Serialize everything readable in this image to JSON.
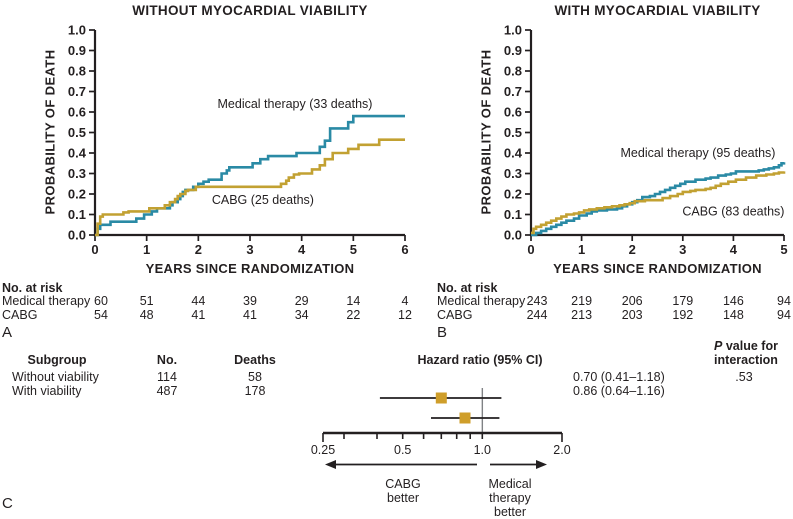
{
  "colors": {
    "medical_therapy": "#2a8aa5",
    "cabg": "#c2a132",
    "axis": "#231f20",
    "reference_line": "#808285",
    "marker": "#cf9e2a"
  },
  "chart_data": [
    {
      "type": "line",
      "subtype": "kaplan-meier-step",
      "panel_letter": "A",
      "title": "WITHOUT MYOCARDIAL VIABILITY",
      "xlabel": "YEARS SINCE RANDOMIZATION",
      "ylabel": "PROBABILITY OF DEATH",
      "xlim": [
        0,
        6
      ],
      "ylim": [
        0,
        1
      ],
      "xticks": [
        "0",
        "1",
        "2",
        "3",
        "4",
        "5",
        "6"
      ],
      "yticks": [
        "0.0",
        "0.1",
        "0.2",
        "0.3",
        "0.4",
        "0.5",
        "0.6",
        "0.7",
        "0.8",
        "0.9",
        "1.0"
      ],
      "grid": false,
      "series": [
        {
          "name": "Medical therapy (33 deaths)",
          "color": "#2a8aa5",
          "label_pos": [
            3.87,
            0.64
          ],
          "steps": [
            [
              0,
              0
            ],
            [
              0.05,
              0.03
            ],
            [
              0.1,
              0.05
            ],
            [
              0.3,
              0.065
            ],
            [
              0.8,
              0.08
            ],
            [
              0.95,
              0.1
            ],
            [
              1.1,
              0.115
            ],
            [
              1.2,
              0.13
            ],
            [
              1.45,
              0.145
            ],
            [
              1.5,
              0.16
            ],
            [
              1.6,
              0.175
            ],
            [
              1.65,
              0.19
            ],
            [
              1.7,
              0.21
            ],
            [
              1.75,
              0.22
            ],
            [
              1.9,
              0.235
            ],
            [
              2,
              0.25
            ],
            [
              2.1,
              0.26
            ],
            [
              2.2,
              0.27
            ],
            [
              2.45,
              0.3
            ],
            [
              2.55,
              0.315
            ],
            [
              2.6,
              0.33
            ],
            [
              3.05,
              0.35
            ],
            [
              3.2,
              0.37
            ],
            [
              3.35,
              0.385
            ],
            [
              3.9,
              0.4
            ],
            [
              4.35,
              0.43
            ],
            [
              4.45,
              0.46
            ],
            [
              4.55,
              0.52
            ],
            [
              4.9,
              0.55
            ],
            [
              5,
              0.58
            ],
            [
              6,
              0.58
            ]
          ]
        },
        {
          "name": "CABG (25 deaths)",
          "color": "#c2a132",
          "label_pos": [
            3.25,
            0.17
          ],
          "steps": [
            [
              0,
              0
            ],
            [
              0.05,
              0.055
            ],
            [
              0.1,
              0.09
            ],
            [
              0.15,
              0.1
            ],
            [
              0.55,
              0.11
            ],
            [
              0.65,
              0.115
            ],
            [
              1.05,
              0.13
            ],
            [
              1.35,
              0.145
            ],
            [
              1.45,
              0.16
            ],
            [
              1.55,
              0.175
            ],
            [
              1.6,
              0.19
            ],
            [
              1.65,
              0.2
            ],
            [
              1.75,
              0.215
            ],
            [
              1.8,
              0.22
            ],
            [
              1.95,
              0.235
            ],
            [
              3.6,
              0.25
            ],
            [
              3.7,
              0.265
            ],
            [
              3.75,
              0.28
            ],
            [
              3.85,
              0.295
            ],
            [
              3.95,
              0.3
            ],
            [
              4.2,
              0.32
            ],
            [
              4.35,
              0.34
            ],
            [
              4.45,
              0.37
            ],
            [
              4.6,
              0.4
            ],
            [
              4.9,
              0.42
            ],
            [
              5.1,
              0.44
            ],
            [
              5.5,
              0.465
            ],
            [
              6,
              0.465
            ]
          ]
        }
      ],
      "risk_table": {
        "title": "No. at risk",
        "rows": [
          {
            "label": "Medical therapy",
            "counts": [
              "60",
              "51",
              "44",
              "39",
              "29",
              "14",
              "4"
            ]
          },
          {
            "label": "CABG",
            "counts": [
              "54",
              "48",
              "41",
              "41",
              "34",
              "22",
              "12"
            ]
          }
        ]
      }
    },
    {
      "type": "line",
      "subtype": "kaplan-meier-step",
      "panel_letter": "B",
      "title": "WITH MYOCARDIAL VIABILITY",
      "xlabel": "YEARS SINCE RANDOMIZATION",
      "ylabel": "PROBABILITY OF DEATH",
      "xlim": [
        0,
        5
      ],
      "ylim": [
        0,
        1
      ],
      "xticks": [
        "0",
        "1",
        "2",
        "3",
        "4",
        "5"
      ],
      "yticks": [
        "0.0",
        "0.1",
        "0.2",
        "0.3",
        "0.4",
        "0.5",
        "0.6",
        "0.7",
        "0.8",
        "0.9",
        "1.0"
      ],
      "grid": false,
      "series": [
        {
          "name": "Medical therapy (95 deaths)",
          "color": "#2a8aa5",
          "label_pos": [
            3.3,
            0.4
          ],
          "steps": [
            [
              0,
              0
            ],
            [
              0.1,
              0.01
            ],
            [
              0.2,
              0.02
            ],
            [
              0.3,
              0.03
            ],
            [
              0.4,
              0.04
            ],
            [
              0.5,
              0.05
            ],
            [
              0.6,
              0.06
            ],
            [
              0.7,
              0.07
            ],
            [
              0.85,
              0.08
            ],
            [
              0.95,
              0.095
            ],
            [
              1.1,
              0.105
            ],
            [
              1.2,
              0.115
            ],
            [
              1.3,
              0.12
            ],
            [
              1.5,
              0.125
            ],
            [
              1.7,
              0.13
            ],
            [
              1.8,
              0.14
            ],
            [
              1.9,
              0.15
            ],
            [
              2,
              0.16
            ],
            [
              2.1,
              0.17
            ],
            [
              2.2,
              0.185
            ],
            [
              2.35,
              0.19
            ],
            [
              2.45,
              0.2
            ],
            [
              2.55,
              0.21
            ],
            [
              2.65,
              0.22
            ],
            [
              2.75,
              0.23
            ],
            [
              2.85,
              0.24
            ],
            [
              2.95,
              0.25
            ],
            [
              3.05,
              0.26
            ],
            [
              3.25,
              0.27
            ],
            [
              3.45,
              0.275
            ],
            [
              3.55,
              0.28
            ],
            [
              3.7,
              0.29
            ],
            [
              3.85,
              0.295
            ],
            [
              3.95,
              0.3
            ],
            [
              4.05,
              0.31
            ],
            [
              4.5,
              0.315
            ],
            [
              4.6,
              0.32
            ],
            [
              4.7,
              0.325
            ],
            [
              4.8,
              0.33
            ],
            [
              4.9,
              0.34
            ],
            [
              4.95,
              0.35
            ],
            [
              5,
              0.355
            ]
          ]
        },
        {
          "name": "CABG (83 deaths)",
          "color": "#c2a132",
          "label_pos": [
            4.0,
            0.115
          ],
          "steps": [
            [
              0,
              0.01
            ],
            [
              0.05,
              0.03
            ],
            [
              0.1,
              0.04
            ],
            [
              0.2,
              0.05
            ],
            [
              0.3,
              0.06
            ],
            [
              0.4,
              0.07
            ],
            [
              0.5,
              0.08
            ],
            [
              0.6,
              0.09
            ],
            [
              0.7,
              0.1
            ],
            [
              0.85,
              0.105
            ],
            [
              0.95,
              0.11
            ],
            [
              1.05,
              0.12
            ],
            [
              1.15,
              0.125
            ],
            [
              1.3,
              0.13
            ],
            [
              1.45,
              0.135
            ],
            [
              1.6,
              0.14
            ],
            [
              1.75,
              0.145
            ],
            [
              1.85,
              0.15
            ],
            [
              1.95,
              0.155
            ],
            [
              2.05,
              0.165
            ],
            [
              2.25,
              0.17
            ],
            [
              2.6,
              0.18
            ],
            [
              2.75,
              0.19
            ],
            [
              2.9,
              0.2
            ],
            [
              3,
              0.21
            ],
            [
              3.15,
              0.215
            ],
            [
              3.25,
              0.22
            ],
            [
              3.45,
              0.225
            ],
            [
              3.55,
              0.23
            ],
            [
              3.65,
              0.24
            ],
            [
              3.75,
              0.25
            ],
            [
              3.9,
              0.26
            ],
            [
              4.05,
              0.27
            ],
            [
              4.25,
              0.28
            ],
            [
              4.45,
              0.29
            ],
            [
              4.65,
              0.295
            ],
            [
              4.8,
              0.3
            ],
            [
              4.9,
              0.305
            ],
            [
              5,
              0.31
            ]
          ]
        }
      ],
      "risk_table": {
        "title": "No. at risk",
        "rows": [
          {
            "label": "Medical therapy",
            "counts": [
              "243",
              "219",
              "206",
              "179",
              "146",
              "94"
            ]
          },
          {
            "label": "CABG",
            "counts": [
              "244",
              "213",
              "203",
              "192",
              "148",
              "94"
            ]
          }
        ]
      }
    },
    {
      "type": "forest",
      "panel_letter": "C",
      "headers": {
        "subgroup": "Subgroup",
        "no": "No.",
        "deaths": "Deaths",
        "hr": "Hazard ratio (95% CI)",
        "p_line1_italic": "P",
        "p_line1_rest": " value for",
        "p_line2": "interaction"
      },
      "rows": [
        {
          "subgroup": "Without viability",
          "no": "114",
          "deaths": "58",
          "hr": 0.7,
          "ci_low": 0.41,
          "ci_high": 1.18,
          "hr_text": "0.70 (0.41–1.18)",
          "p": ".53"
        },
        {
          "subgroup": "With viability",
          "no": "487",
          "deaths": "178",
          "hr": 0.86,
          "ci_low": 0.64,
          "ci_high": 1.16,
          "hr_text": "0.86 (0.64–1.16)",
          "p": ""
        }
      ],
      "axis": {
        "scale": "log",
        "min": 0.25,
        "max": 2,
        "ticks": [
          0.25,
          0.3,
          0.4,
          0.5,
          0.6,
          0.7,
          0.8,
          0.9,
          1,
          2
        ],
        "tick_labels": [
          "0.25",
          "0.5",
          "1.0",
          "2.0"
        ],
        "tick_label_values": [
          0.25,
          0.5,
          1,
          2
        ],
        "ref_line": 1
      },
      "direction_labels": {
        "left": "CABG\nbetter",
        "right": "Medical\ntherapy\nbetter"
      },
      "marker_color": "#cf9e2a"
    }
  ]
}
